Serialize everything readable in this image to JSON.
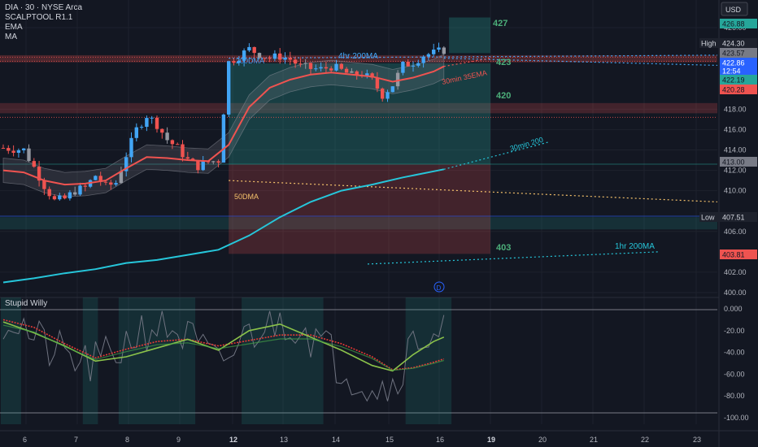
{
  "legend": {
    "symbol": "DIA · 30 · NYSE Arca",
    "line2": "SCALPTOOL R1.1",
    "line3": "EMA",
    "line4": "MA"
  },
  "currency": "USD",
  "oscillator_title": "Stupid Willy",
  "colors": {
    "up": "#2962ff",
    "up_light": "#42a5f5",
    "down": "#ef5350",
    "neutral": "#9598a1",
    "ema": "#ef5350",
    "ma200_30": "#26c6da",
    "zone_green": "#26a69a",
    "zone_red": "#ef5350",
    "osc_green": "#8bc34a",
    "osc_red": "#e53935"
  },
  "chart_data": [
    {
      "type": "candlestick",
      "title": "DIA · 30 · NYSE Arca",
      "x_ticks": [
        "6",
        "7",
        "8",
        "9",
        "12",
        "13",
        "14",
        "15",
        "16",
        "19",
        "20",
        "21",
        "22",
        "23"
      ],
      "y_ticks": [
        "426.00",
        "418.00",
        "416.00",
        "414.00",
        "412.00",
        "410.00",
        "406.00",
        "402.00",
        "400.00"
      ],
      "ylim": [
        400,
        427.6
      ],
      "price_tags": [
        {
          "label": "High",
          "value": "424.30"
        },
        {
          "label": "",
          "value": "426.88"
        },
        {
          "label": "",
          "value": "423.57"
        },
        {
          "label": "",
          "value": "422.86"
        },
        {
          "label": "",
          "value": "12:54"
        },
        {
          "label": "",
          "value": "422.19"
        },
        {
          "label": "",
          "value": "420.28"
        },
        {
          "label": "",
          "value": "413.00"
        },
        {
          "label": "Low",
          "value": "407.51"
        },
        {
          "label": "",
          "value": "403.81"
        }
      ],
      "level_labels": [
        "427",
        "423",
        "420",
        "403"
      ],
      "annotations": [
        "4hr 200MA",
        "200DMA",
        "30min 35EMA",
        "30min 200",
        "50DMA",
        "1hr 200MA"
      ],
      "event_marker": "D",
      "close_path": [
        [
          0,
          414.2
        ],
        [
          4,
          414.0
        ],
        [
          6,
          412.3
        ],
        [
          8,
          410.5
        ],
        [
          10,
          409.0
        ],
        [
          12,
          409.2
        ],
        [
          14,
          410.0
        ],
        [
          16,
          410.3
        ],
        [
          18,
          411.5
        ],
        [
          20,
          410.4
        ],
        [
          22,
          410.8
        ],
        [
          24,
          413.5
        ],
        [
          26,
          416.0
        ],
        [
          28,
          417.4
        ],
        [
          30,
          416.5
        ],
        [
          32,
          415.0
        ],
        [
          34,
          414.2
        ],
        [
          36,
          413.0
        ],
        [
          38,
          412.4
        ],
        [
          40,
          412.8
        ],
        [
          42,
          413.0
        ],
        [
          44,
          422.6
        ],
        [
          46,
          423.2
        ],
        [
          48,
          423.9
        ],
        [
          50,
          423.4
        ],
        [
          52,
          423.0
        ],
        [
          54,
          423.2
        ],
        [
          56,
          422.9
        ],
        [
          58,
          422.2
        ],
        [
          60,
          422.0
        ],
        [
          62,
          421.9
        ],
        [
          64,
          422.2
        ],
        [
          66,
          421.8
        ],
        [
          68,
          421.3
        ],
        [
          70,
          421.5
        ],
        [
          72,
          420.8
        ],
        [
          74,
          419.4
        ],
        [
          76,
          420.4
        ],
        [
          78,
          422.3
        ],
        [
          80,
          422.6
        ],
        [
          82,
          423.3
        ],
        [
          84,
          423.5
        ],
        [
          86,
          423.8
        ]
      ],
      "ema35": [
        [
          0,
          412.0
        ],
        [
          4,
          411.8
        ],
        [
          8,
          411.0
        ],
        [
          12,
          410.6
        ],
        [
          16,
          410.7
        ],
        [
          20,
          411.0
        ],
        [
          24,
          412.2
        ],
        [
          28,
          413.3
        ],
        [
          32,
          413.2
        ],
        [
          36,
          413.0
        ],
        [
          40,
          412.9
        ],
        [
          44,
          414.5
        ],
        [
          48,
          418.2
        ],
        [
          52,
          420.1
        ],
        [
          56,
          420.9
        ],
        [
          60,
          421.4
        ],
        [
          64,
          421.6
        ],
        [
          68,
          421.4
        ],
        [
          72,
          421.2
        ],
        [
          76,
          420.7
        ],
        [
          80,
          421.1
        ],
        [
          84,
          421.7
        ],
        [
          86,
          422.2
        ]
      ],
      "ma200_30min": [
        [
          0,
          401.0
        ],
        [
          6,
          401.4
        ],
        [
          12,
          401.9
        ],
        [
          18,
          402.3
        ],
        [
          24,
          402.9
        ],
        [
          30,
          403.2
        ],
        [
          36,
          403.7
        ],
        [
          42,
          404.2
        ],
        [
          48,
          405.6
        ],
        [
          54,
          407.4
        ],
        [
          60,
          408.9
        ],
        [
          66,
          410.0
        ],
        [
          72,
          410.6
        ],
        [
          78,
          411.3
        ],
        [
          84,
          411.9
        ],
        [
          86,
          412.1
        ]
      ],
      "zones": [
        {
          "color": "green",
          "from_bar": 44,
          "to_bar": 96,
          "low": 412.6,
          "high": 422.5
        },
        {
          "color": "red",
          "from_bar": 44,
          "to_bar": 96,
          "low": 403.8,
          "high": 412.6
        },
        {
          "color": "green",
          "from_bar": 87,
          "to_bar": 96,
          "low": 423.5,
          "high": 427.0
        }
      ]
    },
    {
      "type": "line",
      "title": "Stupid Willy",
      "y_ticks": [
        "0.000",
        "-20.00",
        "-40.00",
        "-60.00",
        "-80.00",
        "-100.00"
      ],
      "ylim": [
        -100,
        0
      ],
      "series": [
        {
          "values": [
            [
              0,
              -8
            ],
            [
              3,
              -12
            ],
            [
              6,
              -28
            ],
            [
              10,
              -40
            ],
            [
              14,
              -48
            ],
            [
              18,
              -52
            ],
            [
              22,
              -40
            ],
            [
              26,
              -22
            ],
            [
              30,
              -14
            ],
            [
              34,
              -20
            ],
            [
              38,
              -35
            ],
            [
              42,
              -55
            ],
            [
              46,
              -32
            ],
            [
              50,
              -16
            ],
            [
              54,
              -10
            ],
            [
              58,
              -13
            ],
            [
              62,
              -32
            ],
            [
              66,
              -52
            ],
            [
              70,
              -65
            ],
            [
              74,
              -72
            ],
            [
              76,
              -68
            ],
            [
              78,
              -48
            ],
            [
              80,
              -32
            ],
            [
              82,
              -24
            ],
            [
              84,
              -20
            ],
            [
              86,
              -18
            ]
          ]
        },
        {
          "values": [
            [
              0,
              -10
            ],
            [
              6,
              -17
            ],
            [
              12,
              -32
            ],
            [
              18,
              -45
            ],
            [
              24,
              -37
            ],
            [
              30,
              -30
            ],
            [
              36,
              -28
            ],
            [
              42,
              -34
            ],
            [
              48,
              -29
            ],
            [
              54,
              -24
            ],
            [
              60,
              -24
            ],
            [
              66,
              -32
            ],
            [
              72,
              -44
            ],
            [
              76,
              -56
            ],
            [
              80,
              -54
            ],
            [
              84,
              -49
            ],
            [
              86,
              -46
            ]
          ]
        },
        {
          "values": [
            [
              0,
              -12
            ],
            [
              6,
              -22
            ],
            [
              12,
              -34
            ],
            [
              18,
              -48
            ],
            [
              24,
              -44
            ],
            [
              30,
              -36
            ],
            [
              36,
              -28
            ],
            [
              42,
              -38
            ],
            [
              48,
              -20
            ],
            [
              54,
              -14
            ],
            [
              60,
              -26
            ],
            [
              66,
              -38
            ],
            [
              72,
              -52
            ],
            [
              76,
              -57
            ],
            [
              80,
              -42
            ],
            [
              84,
              -30
            ],
            [
              86,
              -26
            ]
          ]
        }
      ],
      "shaded_bars": [
        [
          0,
          3
        ],
        [
          16,
          18
        ],
        [
          23,
          37
        ],
        [
          47,
          62
        ],
        [
          79,
          87
        ]
      ]
    }
  ]
}
